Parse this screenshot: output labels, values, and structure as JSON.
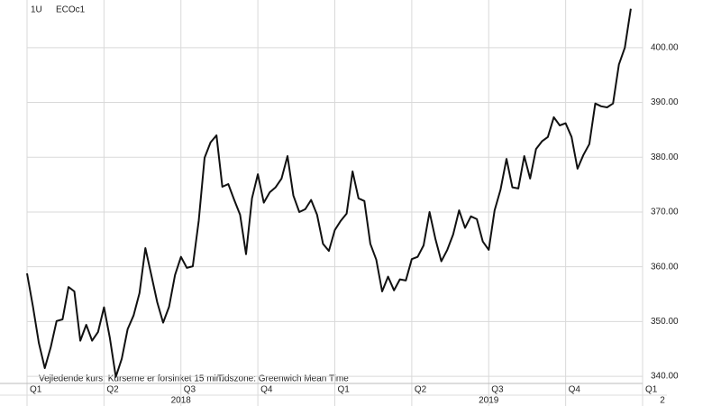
{
  "chart_data": {
    "type": "line",
    "header": [
      "1U",
      "ECOc1"
    ],
    "footnotes": [
      "Vejledende kurs. Kurserne er forsinket 15 min.",
      "Tidszone: Greenwich Mean Time"
    ],
    "categories": [
      "Q1",
      null,
      null,
      null,
      null,
      null,
      null,
      null,
      null,
      null,
      null,
      null,
      null,
      "Q2",
      null,
      null,
      null,
      null,
      null,
      null,
      null,
      null,
      null,
      null,
      null,
      null,
      "Q3",
      null,
      null,
      null,
      null,
      null,
      null,
      null,
      null,
      null,
      null,
      null,
      null,
      "Q4",
      null,
      null,
      null,
      null,
      null,
      null,
      null,
      null,
      null,
      null,
      null,
      null,
      "Q1",
      null,
      null,
      null,
      null,
      null,
      null,
      null,
      null,
      null,
      null,
      null,
      null,
      "Q2",
      null,
      null,
      null,
      null,
      null,
      null,
      null,
      null,
      null,
      null,
      null,
      null,
      "Q3",
      null,
      null,
      null,
      null,
      null,
      null,
      null,
      null,
      null,
      null,
      null,
      null,
      "Q4",
      null,
      null,
      null,
      null,
      null,
      null,
      null,
      null,
      null,
      null,
      null,
      null,
      "Q1"
    ],
    "year_labels": [
      "2018",
      "2019",
      "2"
    ],
    "values": [
      358.8,
      352.7,
      346.1,
      341.5,
      345.3,
      350.1,
      350.4,
      356.3,
      355.5,
      346.5,
      349.4,
      346.5,
      348.1,
      352.6,
      347.0,
      339.9,
      343.2,
      348.6,
      351.1,
      355.2,
      363.4,
      358.5,
      353.5,
      349.8,
      352.7,
      358.5,
      361.8,
      359.8,
      360.1,
      368.4,
      379.9,
      382.7,
      384.0,
      374.6,
      375.1,
      372.2,
      369.5,
      362.3,
      372.5,
      376.9,
      371.7,
      373.6,
      374.5,
      376.1,
      380.2,
      373.0,
      370.0,
      370.5,
      372.2,
      369.5,
      364.2,
      362.9,
      366.7,
      368.4,
      369.7,
      377.4,
      372.5,
      372.0,
      364.2,
      361.3,
      355.5,
      358.2,
      355.7,
      357.7,
      357.5,
      361.4,
      361.8,
      363.9,
      370.0,
      365.1,
      361.0,
      363.1,
      365.9,
      370.3,
      367.1,
      369.2,
      368.7,
      364.6,
      363.1,
      370.3,
      374.1,
      379.7,
      374.5,
      374.3,
      380.2,
      376.1,
      381.5,
      382.9,
      383.7,
      387.3,
      385.8,
      386.2,
      383.7,
      377.9,
      380.4,
      382.4,
      389.8,
      389.3,
      389.1,
      389.8,
      396.9,
      400.0,
      407.1,
      null,
      null
    ],
    "color": "#111111",
    "ylim": [
      338.7,
      408.7
    ],
    "yticks": [
      {
        "value": 340,
        "label": "340.00"
      },
      {
        "value": 350,
        "label": "350.00"
      },
      {
        "value": 360,
        "label": "360.00"
      },
      {
        "value": 370,
        "label": "370.00"
      },
      {
        "value": 380,
        "label": "380.00"
      },
      {
        "value": 390,
        "label": "390.00"
      },
      {
        "value": 400,
        "label": "400.00"
      }
    ],
    "grid": true
  }
}
